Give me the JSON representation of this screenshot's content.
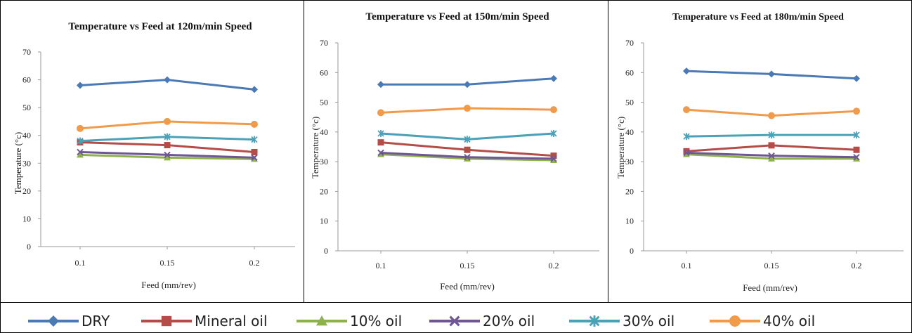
{
  "chart_data": [
    {
      "type": "line",
      "title": "Temperature vs Feed at 120m/min Speed",
      "xlabel": "Feed (mm/rev)",
      "ylabel": "Temperature (°c)",
      "categories": [
        "0.1",
        "0.15",
        "0.2"
      ],
      "ylim": [
        0,
        70
      ],
      "yticks": [
        "0",
        "10",
        "20",
        "30",
        "40",
        "50",
        "60",
        "70"
      ],
      "series": [
        {
          "name": "DRY",
          "values": [
            58,
            60,
            56.5
          ]
        },
        {
          "name": "Mineral oil",
          "values": [
            37.5,
            36.5,
            34
          ]
        },
        {
          "name": "10% oil",
          "values": [
            33,
            32,
            31.5
          ]
        },
        {
          "name": "20% oil",
          "values": [
            34,
            33,
            32
          ]
        },
        {
          "name": "30% oil",
          "values": [
            38,
            39.5,
            38.5
          ]
        },
        {
          "name": "40% oil",
          "values": [
            42.5,
            45,
            44
          ]
        }
      ]
    },
    {
      "type": "line",
      "title": "Temperature vs Feed at 150m/min Speed",
      "xlabel": "Feed (mm/rev)",
      "ylabel": "Temperature (°c)",
      "categories": [
        "0.1",
        "0.15",
        "0.2"
      ],
      "ylim": [
        0,
        70
      ],
      "yticks": [
        "0",
        "10",
        "20",
        "30",
        "40",
        "50",
        "60",
        "70"
      ],
      "series": [
        {
          "name": "DRY",
          "values": [
            56,
            56,
            58
          ]
        },
        {
          "name": "Mineral oil",
          "values": [
            36.5,
            34,
            32
          ]
        },
        {
          "name": "10% oil",
          "values": [
            32.5,
            31,
            30.5
          ]
        },
        {
          "name": "20% oil",
          "values": [
            33,
            31.5,
            31
          ]
        },
        {
          "name": "30% oil",
          "values": [
            39.5,
            37.5,
            39.5
          ]
        },
        {
          "name": "40% oil",
          "values": [
            46.5,
            48,
            47.5
          ]
        }
      ]
    },
    {
      "type": "line",
      "title": "Temperature vs Feed at 180m/min Speed",
      "xlabel": "Feed (mm/rev)",
      "ylabel": "Temperature (°c)",
      "categories": [
        "0.1",
        "0.15",
        "0.2"
      ],
      "ylim": [
        0,
        70
      ],
      "yticks": [
        "0",
        "10",
        "20",
        "30",
        "40",
        "50",
        "60",
        "70"
      ],
      "series": [
        {
          "name": "DRY",
          "values": [
            60.5,
            59.5,
            58
          ]
        },
        {
          "name": "Mineral oil",
          "values": [
            33.5,
            35.5,
            34
          ]
        },
        {
          "name": "10% oil",
          "values": [
            32.5,
            31,
            31
          ]
        },
        {
          "name": "20% oil",
          "values": [
            33,
            32,
            31.5
          ]
        },
        {
          "name": "30% oil",
          "values": [
            38.5,
            39,
            39
          ]
        },
        {
          "name": "40% oil",
          "values": [
            47.5,
            45.5,
            47
          ]
        }
      ]
    }
  ],
  "legend": {
    "placement": "bottom",
    "items": [
      {
        "name": "DRY",
        "color": "#4a7ab5",
        "marker": "diamond"
      },
      {
        "name": "Mineral oil",
        "color": "#b44c48",
        "marker": "square"
      },
      {
        "name": "10% oil",
        "color": "#8eb24b",
        "marker": "triangle"
      },
      {
        "name": "20% oil",
        "color": "#6e5697",
        "marker": "x"
      },
      {
        "name": "30% oil",
        "color": "#4aa1b8",
        "marker": "asterisk"
      },
      {
        "name": "40% oil",
        "color": "#f09a4a",
        "marker": "circle"
      }
    ]
  }
}
